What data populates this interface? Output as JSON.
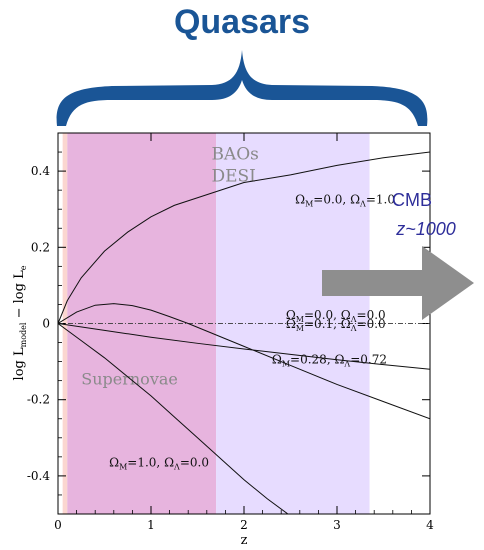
{
  "banner": {
    "title": "Quasars"
  },
  "chart_data": {
    "type": "line",
    "xlabel": "z",
    "ylabel": "log L_model − log L_e",
    "xlim": [
      0,
      4
    ],
    "ylim": [
      -0.5,
      0.5
    ],
    "x_ticks": [
      "0",
      "1",
      "2",
      "3",
      "4"
    ],
    "y_ticks": [
      "0.4",
      "0.2",
      "0",
      "-0.2",
      "-0.4"
    ],
    "bands": [
      {
        "label": "Supernovae",
        "z_range": [
          0.1,
          1.7
        ],
        "color": "#e7b4de"
      },
      {
        "label": "BAOs\nDESI",
        "z_range": [
          1.7,
          3.35
        ],
        "color": "#e7dcff"
      }
    ],
    "series": [
      {
        "name": "Ω_M=0.0, Ω_Λ=1.0",
        "x": [
          0,
          0.1,
          0.25,
          0.5,
          0.75,
          1,
          1.25,
          1.5,
          1.75,
          2,
          2.5,
          3,
          3.5,
          4
        ],
        "y": [
          0,
          0.06,
          0.12,
          0.19,
          0.24,
          0.28,
          0.31,
          0.33,
          0.35,
          0.37,
          0.39,
          0.415,
          0.435,
          0.45
        ]
      },
      {
        "name": "Ω_M=0.0, Ω_Λ=0.0",
        "x": [
          0,
          4
        ],
        "y": [
          0,
          0
        ]
      },
      {
        "name": "Ω_M=0.1, Ω_Λ=0.0",
        "x": [
          0,
          0.5,
          1,
          1.5,
          2,
          2.5,
          3,
          3.5,
          4
        ],
        "y": [
          0,
          -0.018,
          -0.036,
          -0.052,
          -0.067,
          -0.081,
          -0.095,
          -0.108,
          -0.12
        ]
      },
      {
        "name": "Ω_M=0.28, Ω_Λ=0.72",
        "x": [
          0,
          0.2,
          0.4,
          0.6,
          0.8,
          1,
          1.2,
          1.4,
          1.6,
          1.8,
          2,
          2.5,
          3,
          3.5,
          4
        ],
        "y": [
          0,
          0.03,
          0.048,
          0.052,
          0.047,
          0.035,
          0.018,
          0.0,
          -0.02,
          -0.04,
          -0.06,
          -0.11,
          -0.16,
          -0.205,
          -0.25
        ]
      },
      {
        "name": "Ω_M=1.0, Ω_Λ=0.0",
        "x": [
          0,
          0.25,
          0.5,
          0.75,
          1,
          1.25,
          1.5,
          1.75,
          2,
          2.25,
          2.5,
          2.75
        ],
        "y": [
          0,
          -0.045,
          -0.09,
          -0.14,
          -0.19,
          -0.245,
          -0.3,
          -0.355,
          -0.41,
          -0.46,
          -0.505,
          -0.55
        ]
      }
    ],
    "labels": [
      {
        "text": "Ω_M=0.0, Ω_Λ=1.0",
        "series": 0
      },
      {
        "text": "Ω_M=0.0, Ω_Λ=0.0",
        "series": 1
      },
      {
        "text": "Ω_M=0.1, Ω_Λ=0.0",
        "series": 2
      },
      {
        "text": "Ω_M=0.28, Ω_Λ=0.72",
        "series": 3
      },
      {
        "text": "Ω_M=1.0, Ω_Λ=0.0",
        "series": 4
      }
    ]
  },
  "cmb": {
    "line1": "CMB",
    "line2": "z~1000"
  },
  "colors": {
    "banner": "#1a5596",
    "cmb_text": "#2e2e9a",
    "arrow": "#8e8e8e"
  }
}
